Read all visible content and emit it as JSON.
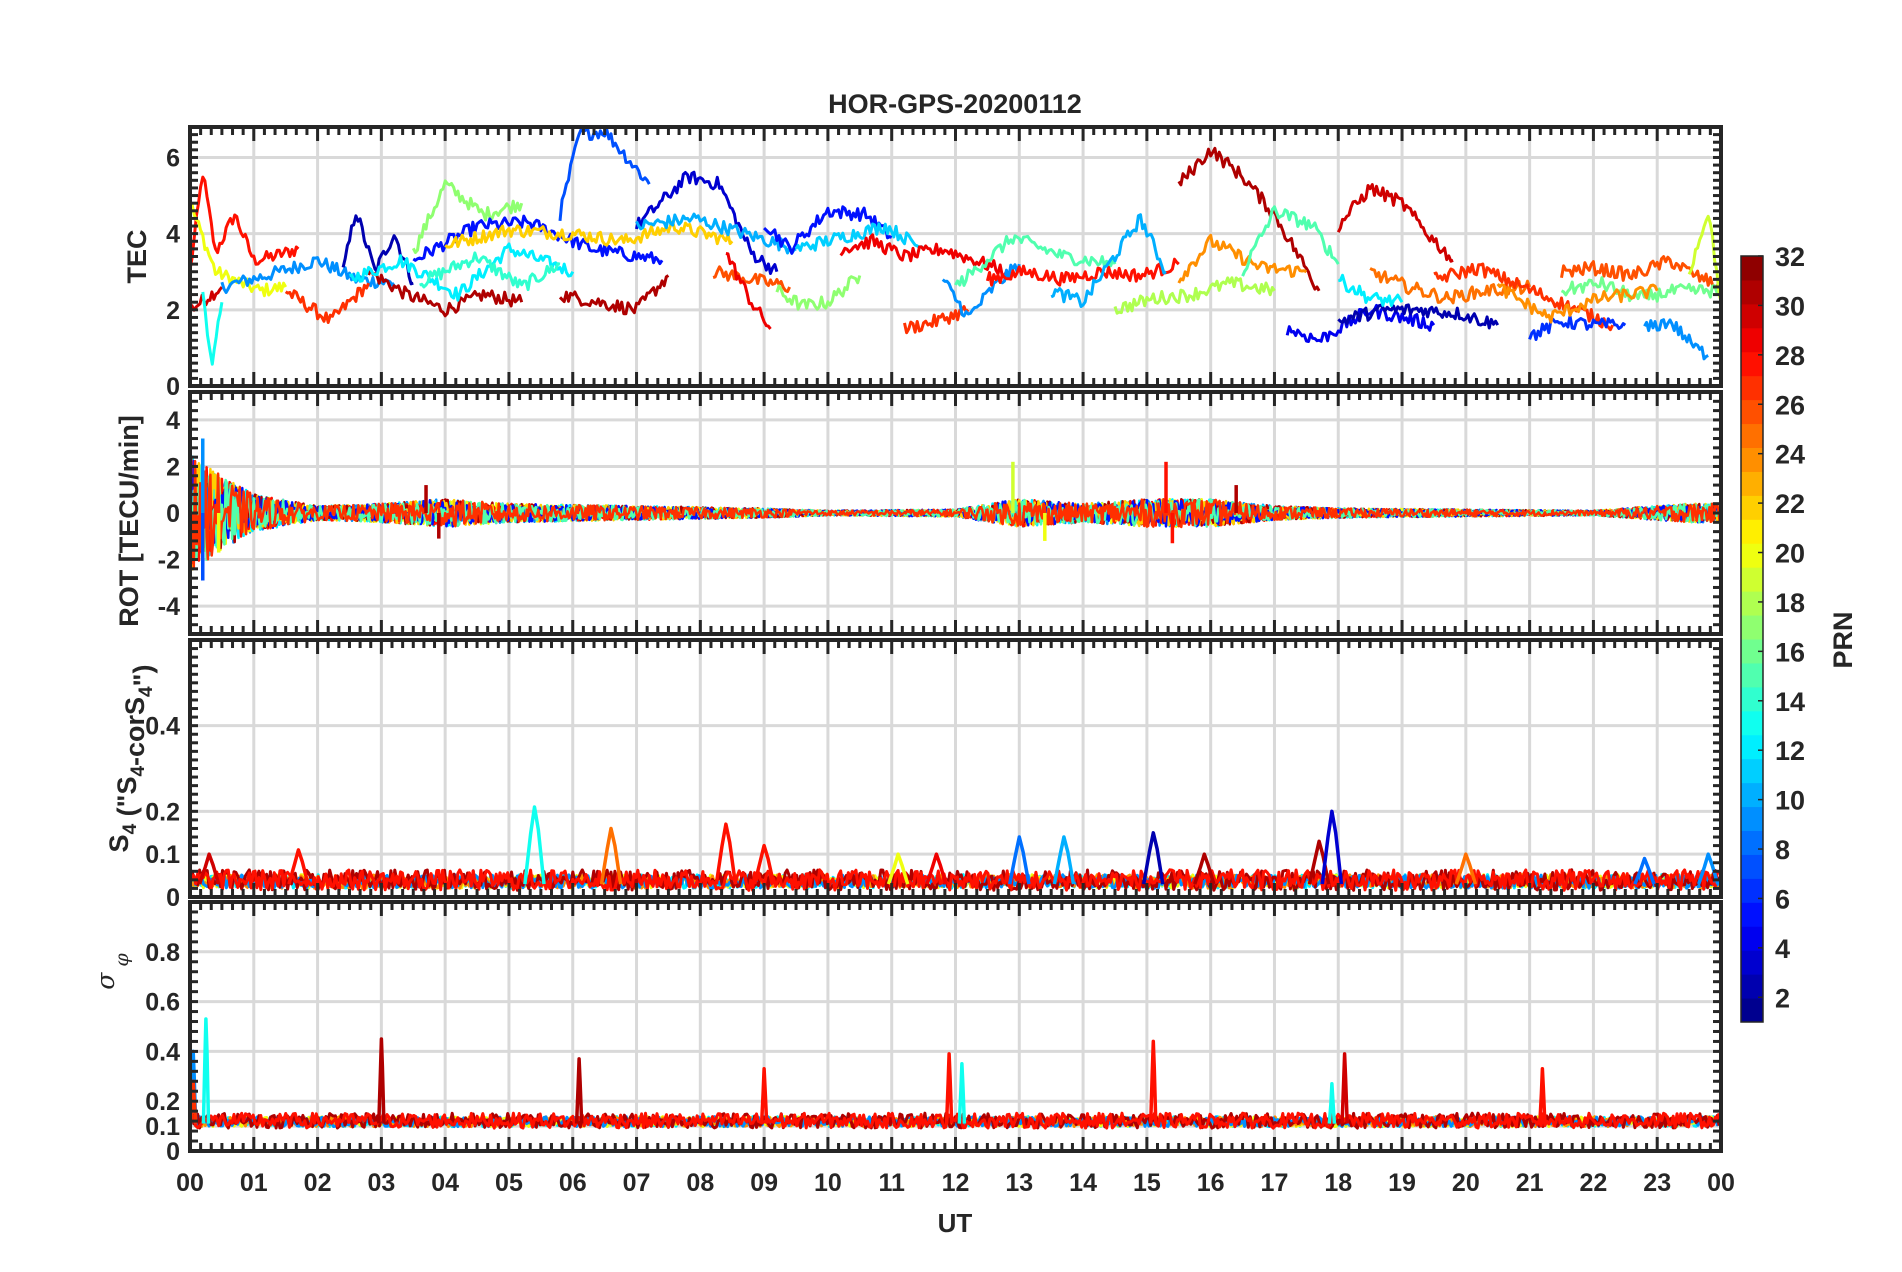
{
  "chart_data": {
    "type": "line",
    "title": "HOR-GPS-20200112",
    "xlabel": "UT",
    "x_ticks": [
      "00",
      "01",
      "02",
      "03",
      "04",
      "05",
      "06",
      "07",
      "08",
      "09",
      "10",
      "11",
      "12",
      "13",
      "14",
      "15",
      "16",
      "17",
      "18",
      "19",
      "20",
      "21",
      "22",
      "23",
      "00"
    ],
    "xlim_hours": [
      0,
      24
    ],
    "grid": true,
    "colorbar": {
      "label": "PRN",
      "range": [
        1,
        32
      ],
      "ticks": [
        "2",
        "4",
        "6",
        "8",
        "10",
        "12",
        "14",
        "16",
        "18",
        "20",
        "22",
        "24",
        "26",
        "28",
        "30",
        "32"
      ],
      "colormap": "jet",
      "position": "right"
    },
    "panels": [
      {
        "id": "tec",
        "ylabel": "TEC",
        "ylim": [
          0,
          6.8
        ],
        "yticks": [
          "0",
          "2",
          "4",
          "6"
        ],
        "ytick_values": [
          0,
          2,
          4,
          6
        ],
        "arcs": [
          {
            "prn": 28,
            "t": [
              0,
              0.2,
              0.4,
              0.7,
              1,
              1.3,
              1.7
            ],
            "v": [
              3,
              5.6,
              3.5,
              4.5,
              3.3,
              3.4,
              3.6
            ]
          },
          {
            "prn": 30,
            "t": [
              0,
              0.25,
              0.5
            ],
            "v": [
              2,
              2.3,
              2.6
            ]
          },
          {
            "prn": 20,
            "t": [
              0,
              0.4,
              0.8,
              1.1,
              1.5
            ],
            "v": [
              4.8,
              3,
              2.7,
              2.5,
              2.6
            ]
          },
          {
            "prn": 13,
            "t": [
              0.2,
              0.35,
              0.5
            ],
            "v": [
              2.5,
              0.5,
              2.2
            ]
          },
          {
            "prn": 9,
            "t": [
              0.5,
              1.2,
              2,
              2.6,
              3.2
            ],
            "v": [
              2.6,
              2.9,
              3.3,
              2.8,
              2.7
            ]
          },
          {
            "prn": 27,
            "t": [
              1.5,
              2.2,
              2.8
            ],
            "v": [
              2.5,
              1.7,
              2.7
            ]
          },
          {
            "prn": 2,
            "t": [
              2.4,
              2.6,
              2.9,
              3.2,
              3.5
            ],
            "v": [
              3,
              4.6,
              3,
              4,
              2.7
            ]
          },
          {
            "prn": 31,
            "t": [
              2.8,
              3.4,
              4,
              4.6,
              5.2
            ],
            "v": [
              3,
              2.4,
              2,
              2.4,
              2.2
            ]
          },
          {
            "prn": 12,
            "t": [
              2.5,
              3.3,
              4.2,
              5,
              6
            ],
            "v": [
              2.8,
              3.3,
              2.4,
              3.6,
              3
            ]
          },
          {
            "prn": 17,
            "t": [
              3.5,
              4,
              4.6,
              5.2
            ],
            "v": [
              3.5,
              5.3,
              4.5,
              4.8
            ]
          },
          {
            "prn": 14,
            "t": [
              3.6,
              4.5,
              5.2,
              5.8
            ],
            "v": [
              2.7,
              3.4,
              2.6,
              3.2
            ]
          },
          {
            "prn": 5,
            "t": [
              3.5,
              4.5,
              5.3,
              6.3,
              7.4
            ],
            "v": [
              3.3,
              4.2,
              4.3,
              3.6,
              3.3
            ]
          },
          {
            "prn": 7,
            "t": [
              5.8,
              6.1,
              6.5,
              7.2
            ],
            "v": [
              4.5,
              6.6,
              6.7,
              5.3
            ]
          },
          {
            "prn": 22,
            "t": [
              4,
              5,
              6,
              6.8,
              7.6,
              8.5
            ],
            "v": [
              3.7,
              4.1,
              4,
              3.8,
              4.2,
              3.8
            ]
          },
          {
            "prn": 31,
            "t": [
              5.8,
              6.4,
              7,
              7.5
            ],
            "v": [
              2.4,
              2.2,
              2,
              2.9
            ]
          },
          {
            "prn": 3,
            "t": [
              7,
              7.8,
              8.3,
              8.8,
              9.2
            ],
            "v": [
              4.2,
              5.5,
              5.3,
              3.5,
              3
            ]
          },
          {
            "prn": 10,
            "t": [
              7,
              7.9,
              8.7,
              9.5
            ],
            "v": [
              4.2,
              4.4,
              4,
              3.6
            ]
          },
          {
            "prn": 26,
            "t": [
              8.2,
              8.8,
              9.4
            ],
            "v": [
              3,
              2.8,
              2.6
            ]
          },
          {
            "prn": 29,
            "t": [
              8.4,
              8.8,
              9.1
            ],
            "v": [
              3.5,
              2.2,
              1.5
            ]
          },
          {
            "prn": 17,
            "t": [
              9.2,
              9.6,
              10,
              10.5
            ],
            "v": [
              2.5,
              2.1,
              2.2,
              2.9
            ]
          },
          {
            "prn": 5,
            "t": [
              9,
              9.4,
              10,
              10.6,
              11
            ],
            "v": [
              4.3,
              3.6,
              4.6,
              4.5,
              3.9
            ]
          },
          {
            "prn": 11,
            "t": [
              9.5,
              10.2,
              10.9,
              11.5
            ],
            "v": [
              3.6,
              3.9,
              4.2,
              3.6
            ]
          },
          {
            "prn": 29,
            "t": [
              10.2,
              10.7,
              11.2,
              11.8,
              12.3,
              12.8
            ],
            "v": [
              3.6,
              3.8,
              3.4,
              3.6,
              3.3,
              3
            ]
          },
          {
            "prn": 27,
            "t": [
              11.2,
              11.7,
              12.2
            ],
            "v": [
              1.5,
              1.7,
              2
            ]
          },
          {
            "prn": 9,
            "t": [
              11.8,
              12.2,
              12.6,
              13
            ],
            "v": [
              2.8,
              1.8,
              2.6,
              3.2
            ]
          },
          {
            "prn": 15,
            "t": [
              12,
              12.9,
              13.7,
              14.5
            ],
            "v": [
              2.6,
              3.9,
              3.4,
              3.2
            ]
          },
          {
            "prn": 28,
            "t": [
              12.5,
              13.1,
              13.7,
              14.3,
              14.9,
              15.5
            ],
            "v": [
              2.8,
              3,
              2.8,
              3,
              2.9,
              3.2
            ]
          },
          {
            "prn": 10,
            "t": [
              13.5,
              14,
              14.9,
              15.3
            ],
            "v": [
              2.5,
              2.2,
              4.4,
              3
            ]
          },
          {
            "prn": 18,
            "t": [
              14.5,
              15.1,
              15.7,
              16.3,
              17
            ],
            "v": [
              2,
              2.3,
              2.4,
              2.7,
              2.5
            ]
          },
          {
            "prn": 31,
            "t": [
              15.5,
              16,
              16.5,
              17,
              17.7
            ],
            "v": [
              5.3,
              6.2,
              5.5,
              4.5,
              2.5
            ]
          },
          {
            "prn": 24,
            "t": [
              15.5,
              16,
              16.8,
              17.5
            ],
            "v": [
              2.8,
              3.8,
              3.1,
              3
            ]
          },
          {
            "prn": 15,
            "t": [
              16.5,
              17,
              17.6,
              18
            ],
            "v": [
              3,
              4.6,
              4.2,
              3.2
            ]
          },
          {
            "prn": 4,
            "t": [
              17.2,
              17.7,
              18.5,
              19.5
            ],
            "v": [
              1.5,
              1.2,
              2,
              1.6
            ]
          },
          {
            "prn": 2,
            "t": [
              18,
              18.7,
              19.3,
              19.9,
              20.5
            ],
            "v": [
              1.7,
              2,
              2,
              1.9,
              1.6
            ]
          },
          {
            "prn": 30,
            "t": [
              18,
              18.5,
              19,
              19.4,
              19.8
            ],
            "v": [
              4.2,
              5.2,
              4.8,
              4,
              3.3
            ]
          },
          {
            "prn": 12,
            "t": [
              18,
              18.5,
              19
            ],
            "v": [
              2.8,
              2.3,
              2.2
            ]
          },
          {
            "prn": 25,
            "t": [
              18.5,
              19.1,
              19.7,
              20.3,
              21
            ],
            "v": [
              3,
              2.6,
              2.3,
              2.5,
              2.6
            ]
          },
          {
            "prn": 27,
            "t": [
              19.5,
              20.2,
              20.9,
              21.6,
              22.3
            ],
            "v": [
              2.8,
              3.1,
              2.6,
              2.1,
              1.6
            ]
          },
          {
            "prn": 6,
            "t": [
              21,
              21.5,
              22,
              22.5
            ],
            "v": [
              1.3,
              1.7,
              1.6,
              1.6
            ]
          },
          {
            "prn": 26,
            "t": [
              21.5,
              22,
              22.6,
              23.2,
              23.6,
              24
            ],
            "v": [
              3,
              3.1,
              2.9,
              3.3,
              2.9,
              2.6
            ]
          },
          {
            "prn": 16,
            "t": [
              21.5,
              22.1,
              22.7,
              23.3,
              24
            ],
            "v": [
              2.5,
              2.7,
              2.3,
              2.5,
              2.5
            ]
          },
          {
            "prn": 9,
            "t": [
              22.8,
              23.2,
              23.6,
              23.8
            ],
            "v": [
              1.5,
              1.7,
              1,
              0.8
            ]
          },
          {
            "prn": 19,
            "t": [
              23.5,
              23.8,
              24
            ],
            "v": [
              3,
              4.6,
              2.2
            ]
          },
          {
            "prn": 24,
            "t": [
              20.5,
              21.3,
              22.1,
              23
            ],
            "v": [
              2.6,
              1.8,
              2.3,
              2.5
            ]
          }
        ]
      },
      {
        "id": "rot",
        "ylabel": "ROT [TECU/min]",
        "ylim": [
          -5.2,
          5.2
        ],
        "yticks": [
          "-4",
          "-2",
          "0",
          "2",
          "4"
        ],
        "ytick_values": [
          -4,
          -2,
          0,
          2,
          4
        ],
        "envelope": [
          [
            0,
            2.5
          ],
          [
            0.5,
            1.6
          ],
          [
            1,
            0.8
          ],
          [
            2,
            0.3
          ],
          [
            3,
            0.4
          ],
          [
            4,
            0.6
          ],
          [
            5,
            0.4
          ],
          [
            7,
            0.3
          ],
          [
            9,
            0.2
          ],
          [
            10,
            0.1
          ],
          [
            12,
            0.15
          ],
          [
            13,
            0.6
          ],
          [
            14,
            0.4
          ],
          [
            15,
            0.6
          ],
          [
            16,
            0.6
          ],
          [
            17,
            0.3
          ],
          [
            18,
            0.2
          ],
          [
            20,
            0.15
          ],
          [
            22,
            0.1
          ],
          [
            23.5,
            0.4
          ],
          [
            24,
            0.4
          ]
        ],
        "spikes": [
          [
            0.2,
            3.2,
            9
          ],
          [
            0.2,
            -2.9,
            7
          ],
          [
            0.45,
            -1.7,
            20
          ],
          [
            3.7,
            1.2,
            31
          ],
          [
            3.9,
            -1.1,
            31
          ],
          [
            12.9,
            2.2,
            19
          ],
          [
            13.4,
            -1.2,
            20
          ],
          [
            15.3,
            2.2,
            28
          ],
          [
            15.4,
            -1.3,
            28
          ],
          [
            16.4,
            1.2,
            31
          ]
        ]
      },
      {
        "id": "s4",
        "ylabel": "S4 (\"S4-corS4\")",
        "ylim": [
          0,
          0.6
        ],
        "yticks": [
          "0",
          "0.1",
          "0.2",
          "0.4"
        ],
        "ytick_values": [
          0,
          0.1,
          0.2,
          0.4
        ],
        "baseline": 0.03,
        "spikes": [
          [
            0.3,
            0.1,
            30
          ],
          [
            1.7,
            0.11,
            28
          ],
          [
            5.4,
            0.21,
            13
          ],
          [
            6.6,
            0.16,
            25
          ],
          [
            8.4,
            0.17,
            28
          ],
          [
            9,
            0.12,
            28
          ],
          [
            11.1,
            0.1,
            20
          ],
          [
            11.7,
            0.1,
            29
          ],
          [
            13,
            0.14,
            8
          ],
          [
            13.7,
            0.14,
            10
          ],
          [
            15.1,
            0.15,
            2
          ],
          [
            15.9,
            0.1,
            31
          ],
          [
            17.7,
            0.13,
            31
          ],
          [
            17.9,
            0.2,
            3
          ],
          [
            20,
            0.1,
            25
          ],
          [
            22.8,
            0.09,
            8
          ],
          [
            23.8,
            0.1,
            9
          ]
        ]
      },
      {
        "id": "sigma",
        "ylabel": "σ φ",
        "ylim": [
          0,
          1
        ],
        "yticks": [
          "0",
          "0.1",
          "0.2",
          "0.4",
          "0.6",
          "0.8"
        ],
        "ytick_values": [
          0,
          0.1,
          0.2,
          0.4,
          0.6,
          0.8
        ],
        "baseline": 0.11,
        "spikes": [
          [
            0.05,
            0.4,
            9
          ],
          [
            0.25,
            0.53,
            13
          ],
          [
            0.05,
            0.28,
            27
          ],
          [
            3,
            0.45,
            31
          ],
          [
            6.1,
            0.37,
            31
          ],
          [
            9,
            0.33,
            28
          ],
          [
            11.9,
            0.39,
            28
          ],
          [
            12.1,
            0.35,
            13
          ],
          [
            15.1,
            0.44,
            28
          ],
          [
            17.9,
            0.27,
            13
          ],
          [
            18.1,
            0.39,
            30
          ],
          [
            21.2,
            0.33,
            28
          ]
        ]
      }
    ]
  }
}
